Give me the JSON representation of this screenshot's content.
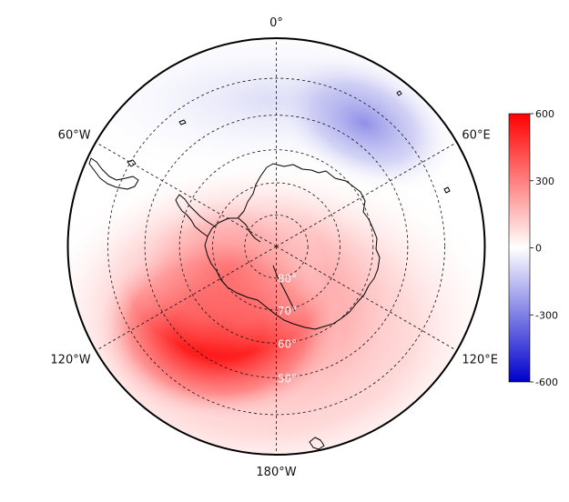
{
  "map": {
    "projection": "south-polar-stereographic",
    "longitude_labels": [
      {
        "text": "0°",
        "lon": 0
      },
      {
        "text": "60°E",
        "lon": 60
      },
      {
        "text": "120°E",
        "lon": 120
      },
      {
        "text": "180°W",
        "lon": 180
      },
      {
        "text": "120°W",
        "lon": -120
      },
      {
        "text": "60°W",
        "lon": -60
      }
    ],
    "latitude_labels": [
      {
        "text": "80°",
        "lat": -80
      },
      {
        "text": "70°",
        "lat": -70
      },
      {
        "text": "60°",
        "lat": -60
      },
      {
        "text": "50°",
        "lat": -50
      }
    ],
    "latitude_circles": [
      -80,
      -70,
      -60,
      -50,
      -40
    ],
    "meridians": [
      0,
      60,
      120,
      180,
      240,
      300
    ],
    "outer_boundary_lat": -30
  },
  "colorbar": {
    "min": -600,
    "max": 600,
    "ticks": [
      {
        "value": 600,
        "label": "600"
      },
      {
        "value": 300,
        "label": "300"
      },
      {
        "value": 0,
        "label": "0"
      },
      {
        "value": -300,
        "label": "-300"
      },
      {
        "value": -600,
        "label": "-600"
      }
    ],
    "colors": {
      "high": "#ff0000",
      "mid": "#ffffff",
      "low": "#0000cc"
    }
  },
  "field": {
    "description_values_in_colorbar_units": [
      {
        "name": "positive anomaly centre",
        "lat": -62,
        "lon": -155,
        "value": 600
      },
      {
        "name": "negative anomaly centre",
        "lat": -47,
        "lon": 35,
        "value": -260
      }
    ]
  }
}
